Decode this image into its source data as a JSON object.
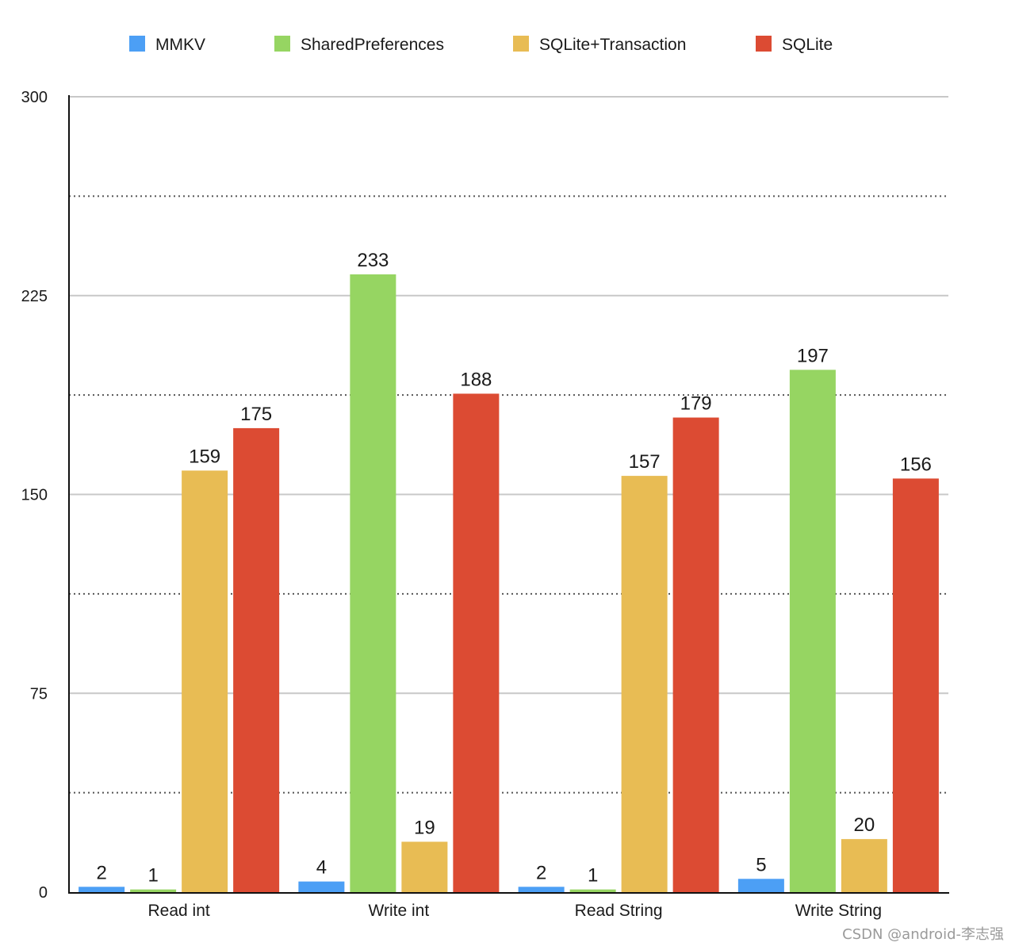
{
  "chart_data": {
    "type": "bar",
    "categories": [
      "Read int",
      "Write int",
      "Read String",
      "Write String"
    ],
    "series": [
      {
        "name": "MMKV",
        "color": "#4c9ff5",
        "values": [
          2,
          4,
          2,
          5
        ]
      },
      {
        "name": "SharedPreferences",
        "color": "#96d562",
        "values": [
          1,
          233,
          1,
          197
        ]
      },
      {
        "name": "SQLite+Transaction",
        "color": "#e8bc54",
        "values": [
          159,
          19,
          157,
          20
        ]
      },
      {
        "name": "SQLite",
        "color": "#dc4b33",
        "values": [
          175,
          188,
          179,
          156
        ]
      }
    ],
    "ylim": [
      0,
      300
    ],
    "yticks": [
      "0",
      "75",
      "150",
      "225",
      "300"
    ],
    "grid": true,
    "legend_position": "top"
  },
  "watermark": "CSDN @android-李志强"
}
